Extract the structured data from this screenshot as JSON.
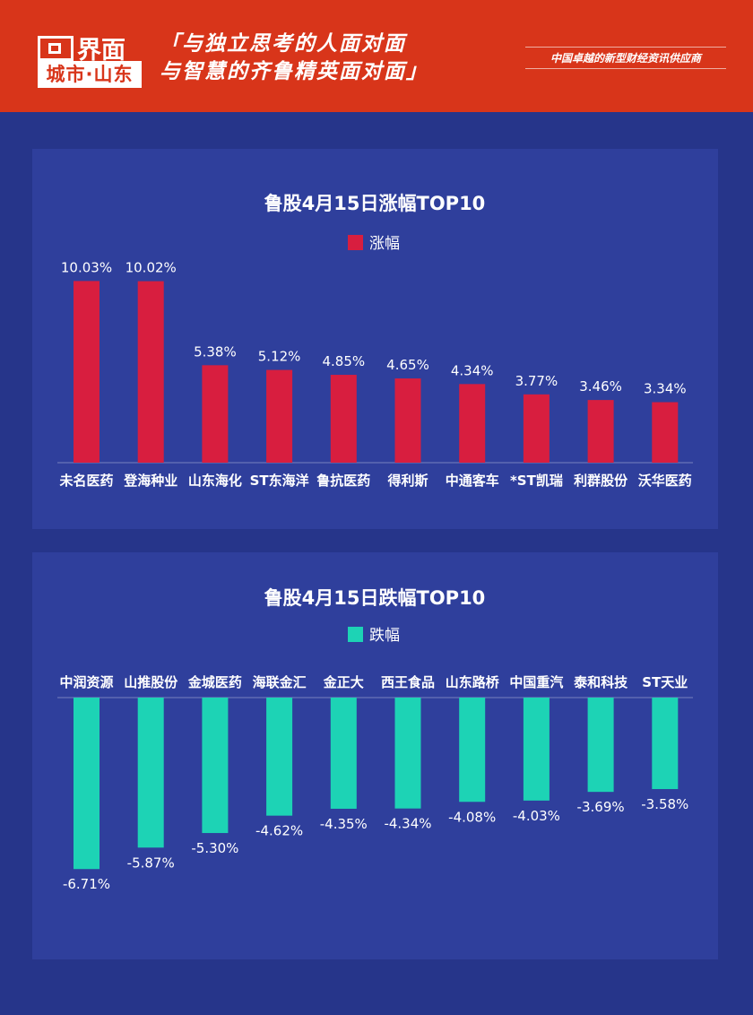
{
  "header": {
    "logo_name": "界面",
    "logo_city": "城市·山东",
    "slogan_line1": "「与独立思考的人面对面",
    "slogan_line2": "与智慧的齐鲁精英面对面」",
    "tagline": "中国卓越的新型财经资讯供应商"
  },
  "chart_data": [
    {
      "type": "bar",
      "title": "鲁股4月15日涨幅TOP10",
      "legend": "top",
      "series": [
        {
          "name": "涨幅",
          "color": "#d81e3f",
          "values": [
            10.03,
            10.02,
            5.38,
            5.12,
            4.85,
            4.65,
            4.34,
            3.77,
            3.46,
            3.34
          ]
        }
      ],
      "categories": [
        "未名医药",
        "登海种业",
        "山东海化",
        "ST东海洋",
        "鲁抗医药",
        "得利斯",
        "中通客车",
        "*ST凯瑞",
        "利群股份",
        "沃华医药"
      ],
      "data_labels": [
        "10.03%",
        "10.02%",
        "5.38%",
        "5.12%",
        "4.85%",
        "4.65%",
        "4.34%",
        "3.77%",
        "3.46%",
        "3.34%"
      ],
      "ylim": [
        0,
        10.5
      ],
      "grid": false
    },
    {
      "type": "bar",
      "title": "鲁股4月15日跌幅TOP10",
      "legend": "top",
      "series": [
        {
          "name": "跌幅",
          "color": "#1dd3b5",
          "values": [
            -6.71,
            -5.87,
            -5.3,
            -4.62,
            -4.35,
            -4.34,
            -4.08,
            -4.03,
            -3.69,
            -3.58
          ]
        }
      ],
      "categories": [
        "中润资源",
        "山推股份",
        "金城医药",
        "海联金汇",
        "金正大",
        "西王食品",
        "山东路桥",
        "中国重汽",
        "泰和科技",
        "ST天业"
      ],
      "data_labels": [
        "-6.71%",
        "-5.87%",
        "-5.30%",
        "-4.62%",
        "-4.35%",
        "-4.34%",
        "-4.08%",
        "-4.03%",
        "-3.69%",
        "-3.58%"
      ],
      "ylim": [
        -7,
        0
      ],
      "grid": false
    }
  ]
}
